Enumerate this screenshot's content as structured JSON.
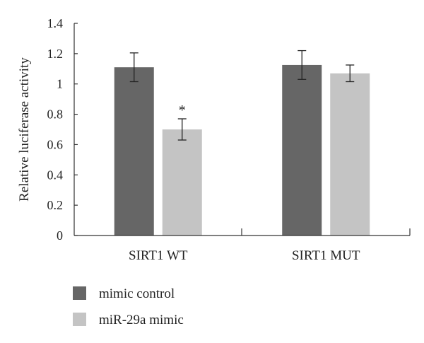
{
  "chart_data": {
    "type": "bar",
    "title": "",
    "xlabel": "",
    "ylabel": "Relative luciferase activity",
    "ylim": [
      0,
      1.4
    ],
    "yticks": [
      0,
      0.2,
      0.4,
      0.6,
      0.8,
      1,
      1.2,
      1.4
    ],
    "ytick_labels": [
      "0",
      "0.2",
      "0.4",
      "0.6",
      "0.8",
      "1",
      "1.2",
      "1.4"
    ],
    "categories": [
      "SIRT1 WT",
      "SIRT1 MUT"
    ],
    "series": [
      {
        "name": "mimic control",
        "color": "#666666",
        "values": [
          1.11,
          1.125
        ],
        "errors": [
          0.095,
          0.095
        ]
      },
      {
        "name": "miR-29a mimic",
        "color": "#c4c4c4",
        "values": [
          0.7,
          1.07
        ],
        "errors": [
          0.07,
          0.055
        ]
      }
    ],
    "annotations": [
      {
        "category_index": 0,
        "series_index": 1,
        "text": "*"
      }
    ],
    "grid": false,
    "legend_position": "bottom-left"
  }
}
